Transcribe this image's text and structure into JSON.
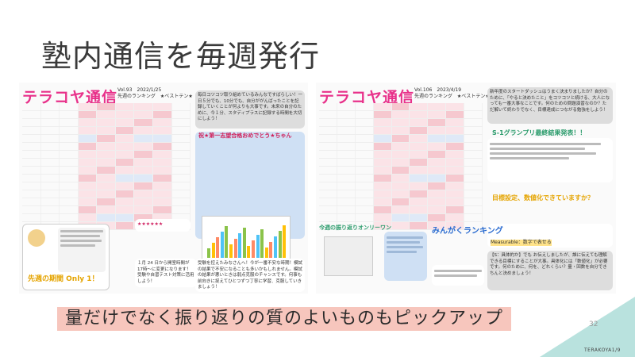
{
  "slide": {
    "title": "塾内通信を毎週発行",
    "footer_banner": "量だけでなく振り返りの質のよいものもピックアップ",
    "page_number": "32",
    "brand": "TERAKOYA1/9"
  },
  "newsletter1": {
    "logo": "テラコヤ通信",
    "volume": "Vol.93　2022/1/25",
    "ranking_title": "先週のランキング　★ベストテン★",
    "note_top": "毎日コツコツ取り組めているみんなですばらしい！一日５分でも、10分でも、自分ががんばったことを記録していくことが何よりも大事です。未来の自分のために、今１分、スタディプラスに記録する時間を大切にしよう！",
    "congrats_heading": "祝★第一志望合格おめでとう★ちゃん",
    "sticker_caption": "先週の期間 Only 1！",
    "date_note": "１月 24 日から開室時間が17時〜に変更になります！受験や自習テスト対策に活用しよう！",
    "bottom_note": "受験を控えたみなさんへ！今が一番不安な時期！模試の結果で不安になることも多いかもしれません。模試の結果が悪いときは弱点克服のチャンスです。何事も前向きに捉えてひとつずつ丁寧に学習、克服していきましょう！"
  },
  "newsletter2": {
    "logo": "テラコヤ通信",
    "volume": "Vol.106　2023/4/19",
    "ranking_title": "先週のランキング　★ベストテン★",
    "note_top": "新年度のスタートダッシュはうまく決まりましたか？自分のために、「やると決めたこと」をコツコツと続ける、大人になっても一番大事なことです。何のための問題演習なのか？ただ解いて終わりでなく、目標達成につながる勉強をしよう！",
    "grandprix_heading": "S-1グランプリ最終結果発表！！",
    "reflection_heading": "今週の振り返りオンリーワン",
    "minna_heading": "みんがくランキング",
    "goal_heading": "目標設定、数値化できていますか？",
    "measurable": "Measurable：数字で表せる",
    "smart_note": "【S：具体的か】でも お伝えしましたが、誰に伝えても理解できる目標にすることが大事。具体化には「数値化」が必要です。何のために、何を、どれくらい？量・回数を自分できちんと決めましょう！"
  },
  "colors": {
    "pink_accent": "#e8318a",
    "banner": "#f7c6bd",
    "triangle": "#b9e2de"
  }
}
